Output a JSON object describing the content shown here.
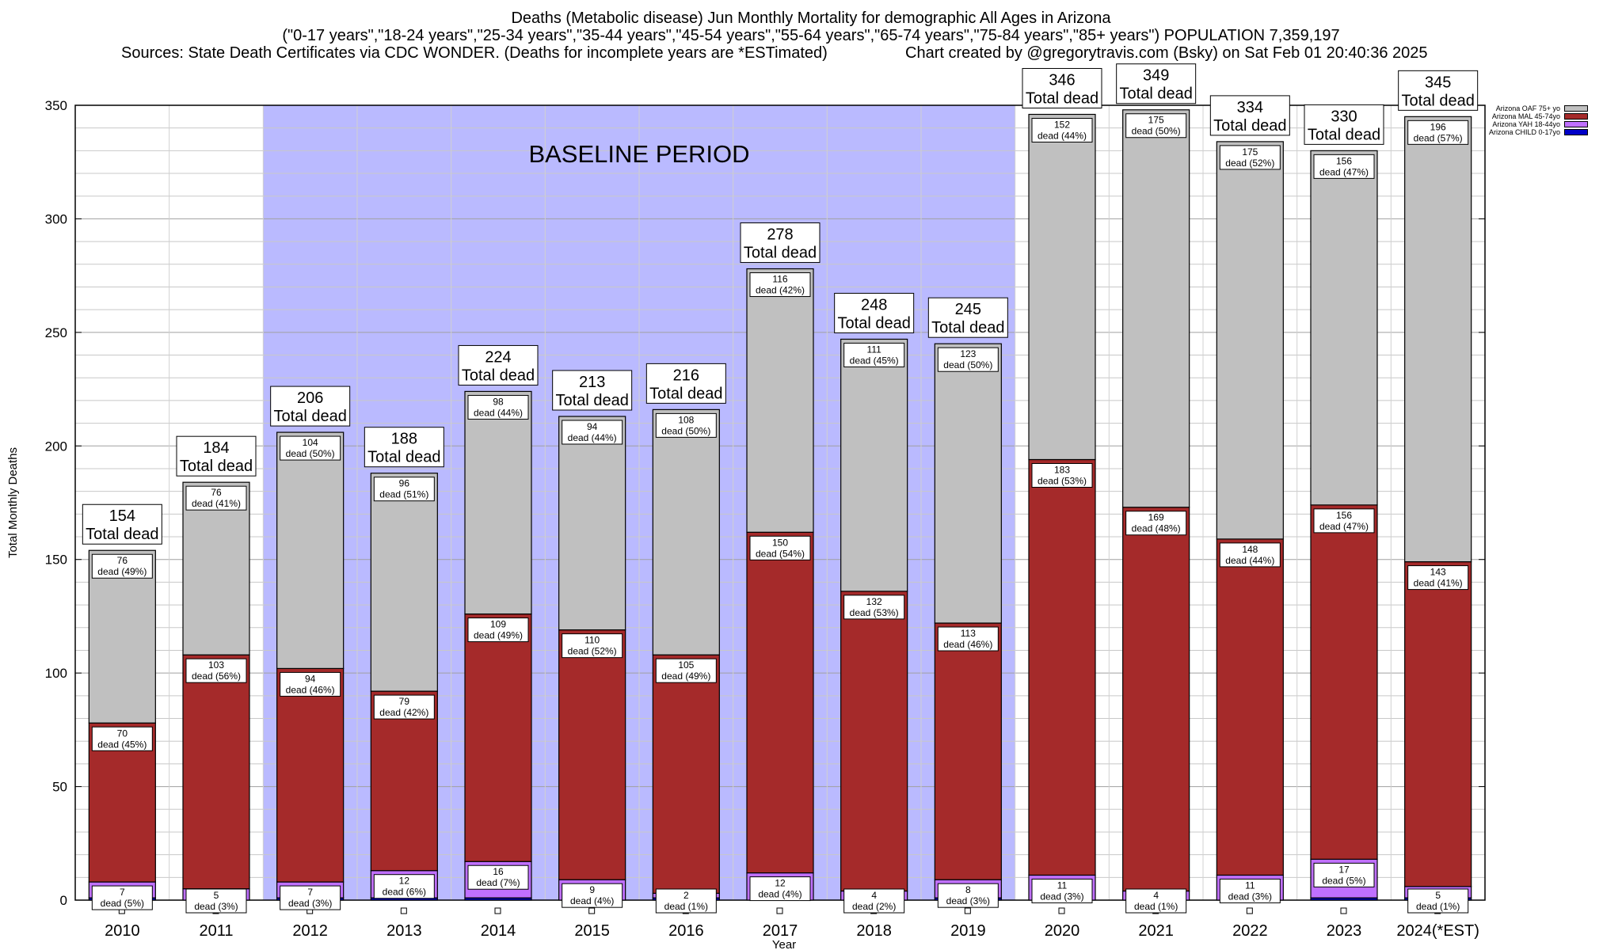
{
  "header": {
    "title1": "Deaths (Metabolic disease) Jun Monthly Mortality for demographic All Ages in Arizona",
    "title2": "(\"0-17 years\",\"18-24 years\",\"25-34 years\",\"35-44 years\",\"45-54 years\",\"55-64 years\",\"65-74 years\",\"75-84 years\",\"85+ years\") POPULATION 7,359,197",
    "source": "Sources: State Death Certificates via CDC WONDER. (Deaths for incomplete years are *ESTimated)",
    "credit": "Chart created by @gregorytravis.com (Bsky) on Sat Feb 01 20:40:36 2025"
  },
  "chart_data": {
    "type": "bar",
    "stacked": true,
    "xlabel": "Year",
    "ylabel": "Total Monthly Deaths",
    "ylim": [
      0,
      350
    ],
    "yticks": [
      0,
      50,
      100,
      150,
      200,
      250,
      300,
      350
    ],
    "grid": true,
    "legend_position": "top-right",
    "baseline_label": "BASELINE PERIOD",
    "baseline_range": [
      "2012",
      "2019"
    ],
    "total_suffix": "Total dead",
    "segment_word": "dead",
    "categories": [
      "2010",
      "2011",
      "2012",
      "2013",
      "2014",
      "2015",
      "2016",
      "2017",
      "2018",
      "2019",
      "2020",
      "2021",
      "2022",
      "2023",
      "2024(*EST)"
    ],
    "totals": [
      154,
      184,
      206,
      188,
      224,
      213,
      216,
      278,
      248,
      245,
      346,
      349,
      334,
      330,
      345
    ],
    "series": [
      {
        "name": "Arizona CHILD 0-17yo",
        "color": "#0000c8",
        "values": [
          1,
          0,
          1,
          1,
          1,
          0,
          1,
          0,
          0,
          1,
          0,
          0,
          0,
          1,
          1
        ],
        "labels": [
          "",
          "",
          "",
          "",
          "",
          "",
          "",
          "",
          "",
          "",
          "",
          "",
          "",
          "",
          ""
        ]
      },
      {
        "name": "Arizona YAH 18-44yo",
        "color": "#c070ff",
        "values": [
          7,
          5,
          7,
          12,
          16,
          9,
          2,
          12,
          4,
          8,
          11,
          4,
          11,
          17,
          5
        ],
        "labels": [
          "(5%)",
          "(3%)",
          "(3%)",
          "(6%)",
          "(7%)",
          "(4%)",
          "(1%)",
          "(4%)",
          "(2%)",
          "(3%)",
          "(3%)",
          "(1%)",
          "(3%)",
          "(5%)",
          "(1%)"
        ]
      },
      {
        "name": "Arizona MAL 45-74yo",
        "color": "#a52a2a",
        "values": [
          70,
          103,
          94,
          79,
          109,
          110,
          105,
          150,
          132,
          113,
          183,
          169,
          148,
          156,
          143
        ],
        "labels": [
          "(45%)",
          "(56%)",
          "(46%)",
          "(42%)",
          "(49%)",
          "(52%)",
          "(49%)",
          "(54%)",
          "(53%)",
          "(46%)",
          "(53%)",
          "(48%)",
          "(44%)",
          "(47%)",
          "(41%)"
        ]
      },
      {
        "name": "Arizona OAF 75+ yo",
        "color": "#c0c0c0",
        "values": [
          76,
          76,
          104,
          96,
          98,
          94,
          108,
          116,
          111,
          123,
          152,
          175,
          175,
          156,
          196
        ],
        "labels": [
          "(49%)",
          "(41%)",
          "(50%)",
          "(51%)",
          "(44%)",
          "(44%)",
          "(50%)",
          "(42%)",
          "(45%)",
          "(50%)",
          "(44%)",
          "(50%)",
          "(52%)",
          "(47%)",
          "(57%)"
        ]
      }
    ]
  }
}
